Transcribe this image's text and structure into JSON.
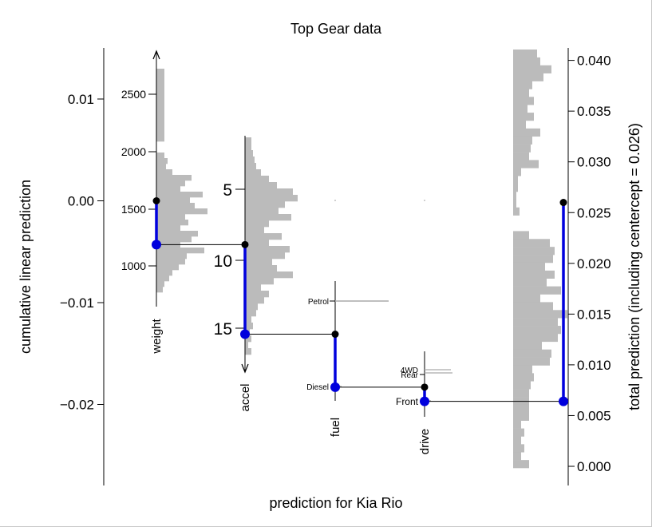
{
  "chart_data": {
    "type": "nomogram",
    "title": "Top Gear data",
    "xlabel": "prediction for Kia Rio",
    "ylabel_left": "cumulative linear prediction",
    "ylabel_right": "total prediction (including centercept = 0.026)",
    "left_axis": {
      "ticks": [
        0.01,
        0.0,
        -0.01,
        -0.02
      ],
      "tick_labels": [
        "0.01",
        "0.00",
        "−0.01",
        "−0.02"
      ],
      "range": [
        -0.0275,
        0.0148
      ]
    },
    "right_axis": {
      "ticks": [
        0.0,
        0.005,
        0.01,
        0.015,
        0.02,
        0.025,
        0.03,
        0.035,
        0.04
      ],
      "tick_labels": [
        "0.000",
        "0.005",
        "0.010",
        "0.015",
        "0.020",
        "0.025",
        "0.030",
        "0.035",
        "0.040"
      ]
    },
    "variables": [
      {
        "name": "weight",
        "ticks": [
          1000,
          1500,
          2000,
          2500
        ],
        "tick_labels": [
          "1000",
          "1500",
          "2000",
          "2500"
        ],
        "start_prediction": 0.0,
        "end_prediction": -0.0043,
        "value_marker": "blue"
      },
      {
        "name": "accel",
        "ticks": [
          5,
          10,
          15
        ],
        "tick_labels": [
          "5",
          "10",
          "15"
        ],
        "start_prediction": -0.0043,
        "end_prediction": -0.0131,
        "value_marker": "blue"
      },
      {
        "name": "fuel",
        "levels": [
          "Petrol",
          "Diesel"
        ],
        "selected": "Diesel",
        "start_prediction": -0.0131,
        "end_prediction": -0.0183
      },
      {
        "name": "drive",
        "levels": [
          "4WD",
          "Rear",
          "Front"
        ],
        "selected": "Front",
        "start_prediction": -0.0183,
        "end_prediction": -0.0197
      }
    ],
    "total": {
      "start": 0.026,
      "end": 0.0064
    },
    "colors": {
      "path": "#000000",
      "contribution": "#0000dd",
      "histogram": "#bbbbbb"
    }
  }
}
